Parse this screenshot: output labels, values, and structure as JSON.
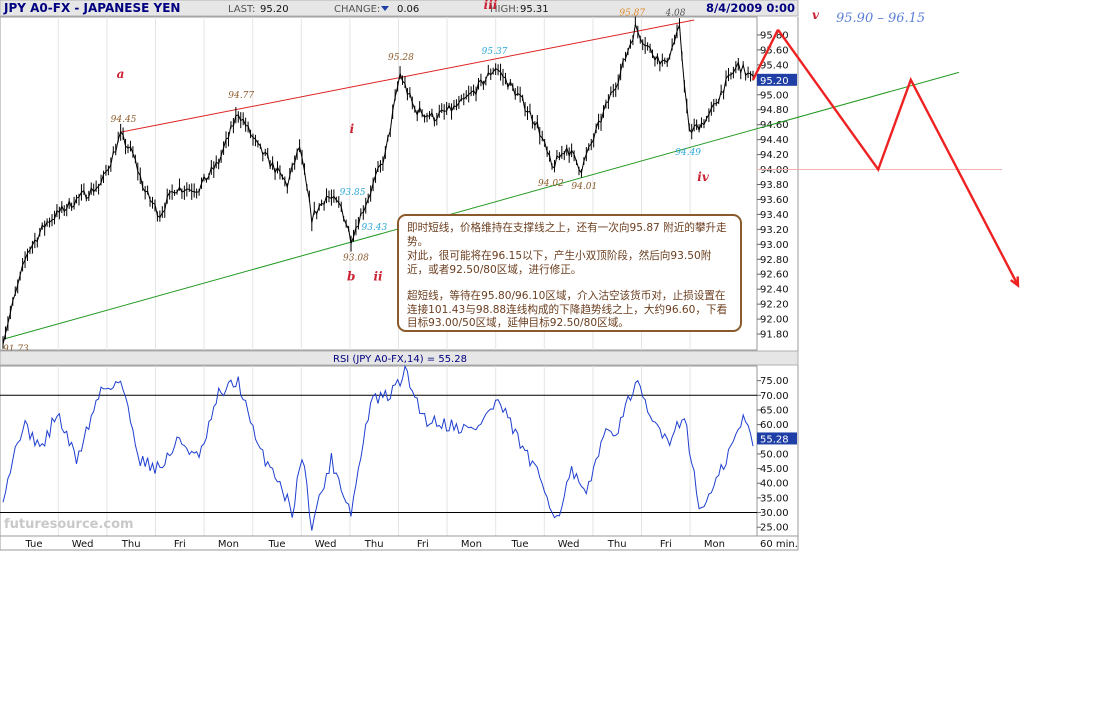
{
  "header": {
    "symbol": "JPY A0-FX - JAPANESE YEN",
    "last_label": "LAST:",
    "last_value": "95.20",
    "change_label": "CHANGE:",
    "change_value": "0.06",
    "high_label": "HIGH:",
    "high_value": "95.31",
    "datetime": "8/4/2009 0:00"
  },
  "watermark": "futuresource.com",
  "forecast_label": "95.90 – 96.15",
  "comment": {
    "p1": "即时短线，价格维持在支撑线之上，还有一次向95.87 附近的攀升走势。",
    "p2": "对此，很可能将在96.15以下，产生小双顶阶段，然后向93.50附近，或者92.50/80区域，进行修正。",
    "p3": "超短线，等待在95.80/96.10区域，介入沽空该货币对，止损设置在连接101.43与98.88连线构成的下降趋势线之上，大约96.60，下看目标93.00/50区域，延伸目标92.50/80区域。"
  },
  "chart_data": [
    {
      "type": "line",
      "title": "JPY A0-FX - JAPANESE YEN",
      "interval": "60 min.",
      "y_axis_side": "right",
      "ylim": [
        91.6,
        96.0
      ],
      "y_ticks": [
        "95.80",
        "95.60",
        "95.40",
        "95.20",
        "95.00",
        "94.80",
        "94.60",
        "94.40",
        "94.20",
        "94.00",
        "93.80",
        "93.60",
        "93.40",
        "93.20",
        "93.00",
        "92.80",
        "92.60",
        "92.40",
        "92.20",
        "92.00",
        "91.80"
      ],
      "last_price_tag": "95.20",
      "x_tick_labels": [
        "Tue",
        "Wed",
        "Thu",
        "Fri",
        "Mon",
        "Tue",
        "Wed",
        "Thu",
        "Fri",
        "Mon",
        "Tue",
        "Wed",
        "Thu",
        "Fri",
        "Mon"
      ],
      "price_path": [
        {
          "bar": 0,
          "price": 91.73
        },
        {
          "bar": 10,
          "price": 92.9
        },
        {
          "bar": 18,
          "price": 93.3
        },
        {
          "bar": 30,
          "price": 93.6
        },
        {
          "bar": 40,
          "price": 93.8
        },
        {
          "bar": 48,
          "price": 94.45
        },
        {
          "bar": 53,
          "price": 94.2
        },
        {
          "bar": 58,
          "price": 93.7
        },
        {
          "bar": 64,
          "price": 93.4
        },
        {
          "bar": 70,
          "price": 93.75
        },
        {
          "bar": 80,
          "price": 93.75
        },
        {
          "bar": 88,
          "price": 94.1
        },
        {
          "bar": 96,
          "price": 94.77
        },
        {
          "bar": 104,
          "price": 94.3
        },
        {
          "bar": 110,
          "price": 94.05
        },
        {
          "bar": 116,
          "price": 93.8
        },
        {
          "bar": 121,
          "price": 94.3
        },
        {
          "bar": 126,
          "price": 93.35
        },
        {
          "bar": 132,
          "price": 93.65
        },
        {
          "bar": 138,
          "price": 93.5
        },
        {
          "bar": 142,
          "price": 93.08
        },
        {
          "bar": 148,
          "price": 93.55
        },
        {
          "bar": 156,
          "price": 94.2
        },
        {
          "bar": 162,
          "price": 95.28
        },
        {
          "bar": 168,
          "price": 94.8
        },
        {
          "bar": 176,
          "price": 94.7
        },
        {
          "bar": 186,
          "price": 94.85
        },
        {
          "bar": 194,
          "price": 95.1
        },
        {
          "bar": 201,
          "price": 95.37
        },
        {
          "bar": 210,
          "price": 95.0
        },
        {
          "bar": 218,
          "price": 94.6
        },
        {
          "bar": 224,
          "price": 94.02
        },
        {
          "bar": 230,
          "price": 94.3
        },
        {
          "bar": 236,
          "price": 94.01
        },
        {
          "bar": 242,
          "price": 94.5
        },
        {
          "bar": 248,
          "price": 95.0
        },
        {
          "bar": 252,
          "price": 95.3
        },
        {
          "bar": 258,
          "price": 95.9
        },
        {
          "bar": 264,
          "price": 95.6
        },
        {
          "bar": 270,
          "price": 95.4
        },
        {
          "bar": 276,
          "price": 95.87
        },
        {
          "bar": 280,
          "price": 94.49
        },
        {
          "bar": 288,
          "price": 94.7
        },
        {
          "bar": 294,
          "price": 95.1
        },
        {
          "bar": 300,
          "price": 95.4
        },
        {
          "bar": 306,
          "price": 95.2
        }
      ],
      "price_labels": [
        {
          "text": "91.73",
          "bar": 0,
          "price": 91.73
        },
        {
          "text": "94.45",
          "bar": 48,
          "price": 94.45
        },
        {
          "text": "94.77",
          "bar": 96,
          "price": 94.77
        },
        {
          "text": "93.85",
          "bar": 139,
          "price": 93.85
        },
        {
          "text": "93.43",
          "bar": 143,
          "price": 93.43
        },
        {
          "text": "93.08",
          "bar": 142,
          "price": 93.08
        },
        {
          "text": "95.28",
          "bar": 162,
          "price": 95.28
        },
        {
          "text": "95.37",
          "bar": 201,
          "price": 95.37
        },
        {
          "text": "94.02",
          "bar": 224,
          "price": 94.02
        },
        {
          "text": "94.01",
          "bar": 236,
          "price": 94.01
        },
        {
          "text": "95.87",
          "bar": 258,
          "price": 95.87
        },
        {
          "text": "4.08",
          "bar": 276,
          "price": 95.87
        },
        {
          "text": "94.49",
          "bar": 280,
          "price": 94.49
        }
      ],
      "wave_labels": [
        {
          "text": "a",
          "bar": 48,
          "price": 94.45
        },
        {
          "text": "b",
          "bar": 142,
          "price": 93.08
        },
        {
          "text": "i",
          "bar": 139,
          "price": 93.85
        },
        {
          "text": "ii",
          "bar": 143,
          "price": 93.08
        },
        {
          "text": "iii",
          "bar": 201,
          "price": 95.37
        },
        {
          "text": "iv",
          "bar": 280,
          "price": 94.49
        },
        {
          "text": "v",
          "bar": 330,
          "price": 95.87
        }
      ],
      "trendlines": [
        {
          "name": "resistance",
          "color": "#dd2222",
          "from": {
            "bar": 48,
            "price": 94.5
          },
          "to": {
            "bar": 282,
            "price": 96.0
          }
        },
        {
          "name": "support",
          "color": "#229922",
          "from": {
            "bar": 0,
            "price": 91.73
          },
          "to": {
            "bar": 390,
            "price": 95.3
          }
        }
      ],
      "horizontal_line": {
        "price": 94.0,
        "color": "#f2b0b0"
      },
      "projection": {
        "color": "#ee2222",
        "points": [
          {
            "bar": 315,
            "price": 95.87
          },
          {
            "bar": 358,
            "price": 94.0
          },
          {
            "bar": 372,
            "price": 95.2
          },
          {
            "bar": 418,
            "price": 92.45
          }
        ]
      }
    },
    {
      "type": "line",
      "title": "RSI (JPY A0-FX,14) = 55.28",
      "ylim": [
        22,
        80
      ],
      "y_ticks": [
        "75.00",
        "70.00",
        "65.00",
        "60.00",
        "55.00",
        "50.00",
        "45.00",
        "40.00",
        "35.00",
        "30.00",
        "25.00"
      ],
      "reference_lines": [
        70,
        30
      ],
      "last_value_tag": "55.28",
      "rsi_path": [
        {
          "bar": 0,
          "value": 36
        },
        {
          "bar": 8,
          "value": 60
        },
        {
          "bar": 16,
          "value": 52
        },
        {
          "bar": 22,
          "value": 64
        },
        {
          "bar": 30,
          "value": 48
        },
        {
          "bar": 40,
          "value": 72
        },
        {
          "bar": 48,
          "value": 75
        },
        {
          "bar": 56,
          "value": 48
        },
        {
          "bar": 64,
          "value": 45
        },
        {
          "bar": 72,
          "value": 55
        },
        {
          "bar": 80,
          "value": 48
        },
        {
          "bar": 88,
          "value": 70
        },
        {
          "bar": 96,
          "value": 75
        },
        {
          "bar": 104,
          "value": 52
        },
        {
          "bar": 112,
          "value": 42
        },
        {
          "bar": 118,
          "value": 30
        },
        {
          "bar": 122,
          "value": 50
        },
        {
          "bar": 126,
          "value": 26
        },
        {
          "bar": 134,
          "value": 48
        },
        {
          "bar": 142,
          "value": 30
        },
        {
          "bar": 150,
          "value": 68
        },
        {
          "bar": 158,
          "value": 70
        },
        {
          "bar": 164,
          "value": 78
        },
        {
          "bar": 172,
          "value": 62
        },
        {
          "bar": 182,
          "value": 60
        },
        {
          "bar": 192,
          "value": 58
        },
        {
          "bar": 202,
          "value": 68
        },
        {
          "bar": 212,
          "value": 52
        },
        {
          "bar": 220,
          "value": 40
        },
        {
          "bar": 226,
          "value": 28
        },
        {
          "bar": 232,
          "value": 44
        },
        {
          "bar": 238,
          "value": 35
        },
        {
          "bar": 244,
          "value": 55
        },
        {
          "bar": 252,
          "value": 60
        },
        {
          "bar": 258,
          "value": 75
        },
        {
          "bar": 264,
          "value": 62
        },
        {
          "bar": 272,
          "value": 55
        },
        {
          "bar": 278,
          "value": 64
        },
        {
          "bar": 284,
          "value": 31
        },
        {
          "bar": 290,
          "value": 38
        },
        {
          "bar": 296,
          "value": 50
        },
        {
          "bar": 302,
          "value": 62
        },
        {
          "bar": 306,
          "value": 55
        }
      ]
    }
  ]
}
